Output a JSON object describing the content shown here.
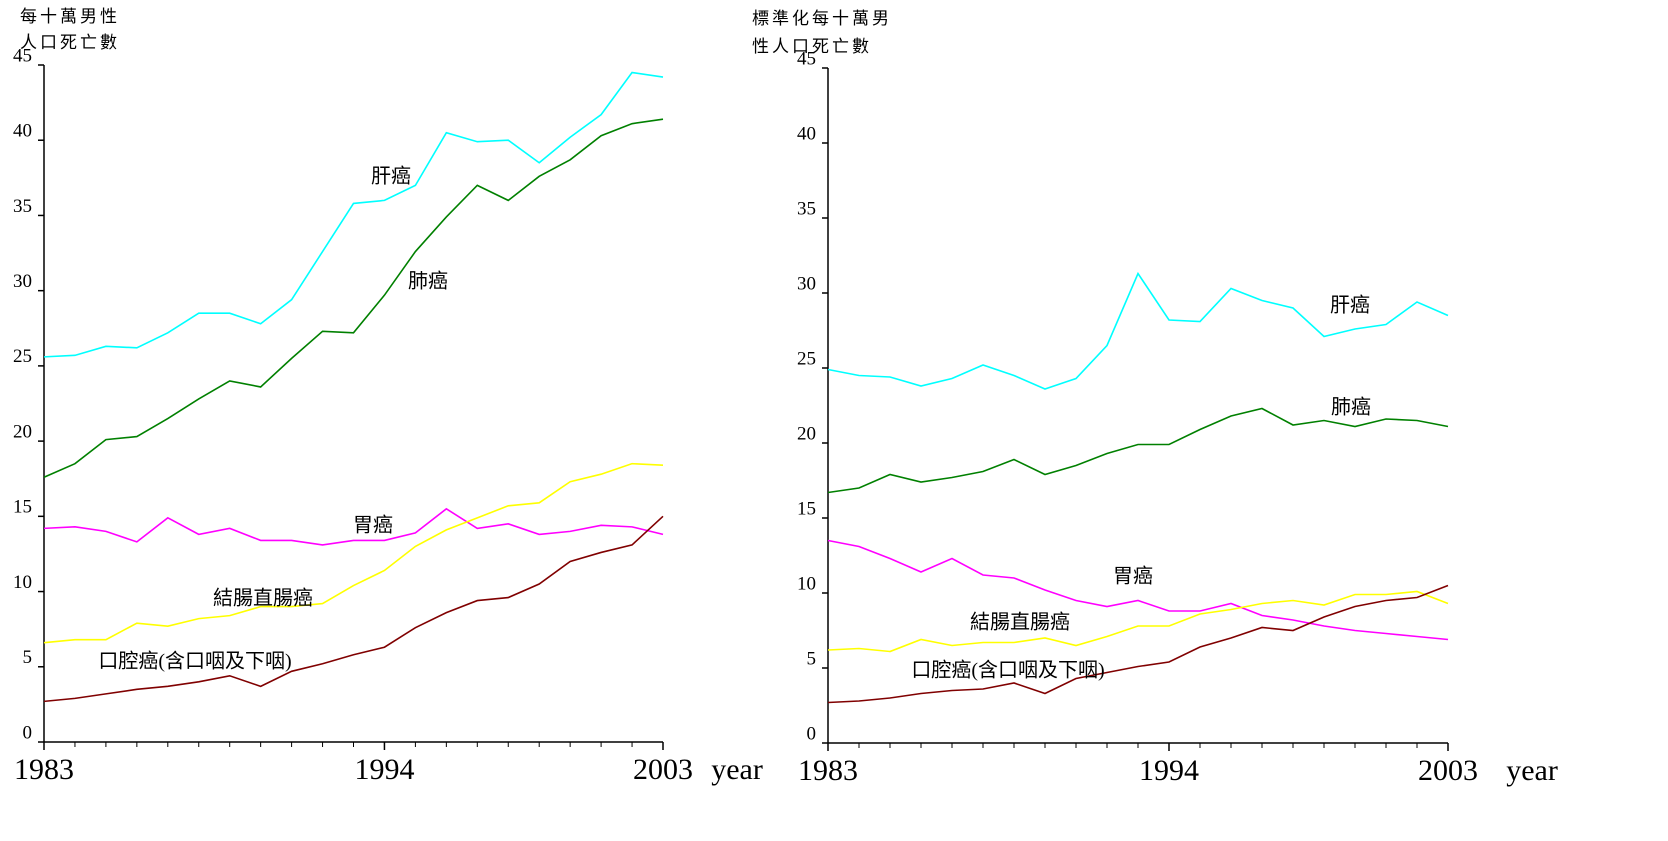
{
  "chart_data": [
    {
      "type": "line",
      "ylabel_lines": [
        "每十萬男性",
        "人口死亡數"
      ],
      "xlabel": "year",
      "x": [
        1983,
        1984,
        1985,
        1986,
        1987,
        1988,
        1989,
        1990,
        1991,
        1992,
        1993,
        1994,
        1995,
        1996,
        1997,
        1998,
        1999,
        2000,
        2001,
        2002,
        2003
      ],
      "xlim": [
        1983,
        2003
      ],
      "xticks": [
        1983,
        1994,
        2003
      ],
      "ylim": [
        0,
        45
      ],
      "yticks": [
        0,
        5,
        10,
        15,
        20,
        25,
        30,
        35,
        40,
        45
      ],
      "series": [
        {
          "name": "肝癌",
          "color": "#00ffff",
          "values": [
            25.6,
            25.7,
            26.3,
            26.2,
            27.2,
            28.5,
            28.5,
            27.8,
            29.4,
            32.6,
            35.8,
            36.0,
            37.0,
            40.5,
            39.9,
            40.0,
            38.5,
            40.2,
            41.7,
            44.5,
            44.2
          ]
        },
        {
          "name": "肺癌",
          "color": "#008000",
          "values": [
            17.6,
            18.5,
            20.1,
            20.3,
            21.5,
            22.8,
            24.0,
            23.6,
            25.5,
            27.3,
            27.2,
            29.7,
            32.6,
            34.9,
            37.0,
            36.0,
            37.6,
            38.7,
            40.3,
            41.1,
            41.4
          ]
        },
        {
          "name": "胃癌",
          "color": "#ff00ff",
          "values": [
            14.2,
            14.3,
            14.0,
            13.3,
            14.9,
            13.8,
            14.2,
            13.4,
            13.4,
            13.1,
            13.4,
            13.4,
            13.9,
            15.5,
            14.2,
            14.5,
            13.8,
            14.0,
            14.4,
            14.3,
            13.8
          ]
        },
        {
          "name": "結腸直腸癌",
          "color": "#ffff00",
          "values": [
            6.6,
            6.8,
            6.8,
            7.9,
            7.7,
            8.2,
            8.4,
            9.0,
            9.0,
            9.2,
            10.4,
            11.4,
            13.0,
            14.1,
            14.9,
            15.7,
            15.9,
            17.3,
            17.8,
            18.5,
            18.4
          ]
        },
        {
          "name": "口腔癌(含口咽及下咽)",
          "color": "#800000",
          "values": [
            2.7,
            2.9,
            3.2,
            3.5,
            3.7,
            4.0,
            4.4,
            3.7,
            4.7,
            5.2,
            5.8,
            6.3,
            7.6,
            8.6,
            9.4,
            9.6,
            10.5,
            12.0,
            12.6,
            13.1,
            15.0
          ]
        }
      ]
    },
    {
      "type": "line",
      "ylabel_lines": [
        "標準化每十萬男",
        "性人口死亡數"
      ],
      "xlabel": "year",
      "x": [
        1983,
        1984,
        1985,
        1986,
        1987,
        1988,
        1989,
        1990,
        1991,
        1992,
        1993,
        1994,
        1995,
        1996,
        1997,
        1998,
        1999,
        2000,
        2001,
        2002,
        2003
      ],
      "xlim": [
        1983,
        2003
      ],
      "xticks": [
        1983,
        1994,
        2003
      ],
      "ylim": [
        0,
        45
      ],
      "yticks": [
        0,
        5,
        10,
        15,
        20,
        25,
        30,
        35,
        40,
        45
      ],
      "series": [
        {
          "name": "肝癌",
          "color": "#00ffff",
          "values": [
            24.9,
            24.5,
            24.4,
            23.8,
            24.3,
            25.2,
            24.5,
            23.6,
            24.3,
            26.5,
            31.3,
            28.2,
            28.1,
            30.3,
            29.5,
            29.0,
            27.1,
            27.6,
            27.9,
            29.4,
            28.5
          ]
        },
        {
          "name": "肺癌",
          "color": "#008000",
          "values": [
            16.7,
            17.0,
            17.9,
            17.4,
            17.7,
            18.1,
            18.9,
            17.9,
            18.5,
            19.3,
            19.9,
            19.9,
            20.9,
            21.8,
            22.3,
            21.2,
            21.5,
            21.1,
            21.6,
            21.5,
            21.1
          ]
        },
        {
          "name": "胃癌",
          "color": "#ff00ff",
          "values": [
            13.5,
            13.1,
            12.3,
            11.4,
            12.3,
            11.2,
            11.0,
            10.2,
            9.5,
            9.1,
            9.5,
            8.8,
            8.8,
            9.3,
            8.5,
            8.2,
            7.8,
            7.5,
            7.3,
            7.1,
            6.9
          ]
        },
        {
          "name": "結腸直腸癌",
          "color": "#ffff00",
          "values": [
            6.2,
            6.3,
            6.1,
            6.9,
            6.5,
            6.7,
            6.7,
            7.0,
            6.5,
            7.1,
            7.8,
            7.8,
            8.6,
            8.9,
            9.3,
            9.5,
            9.2,
            9.9,
            9.9,
            10.1,
            9.3
          ]
        },
        {
          "name": "口腔癌(含口咽及下咽)",
          "color": "#800000",
          "values": [
            2.7,
            2.8,
            3.0,
            3.3,
            3.5,
            3.6,
            4.0,
            3.3,
            4.3,
            4.7,
            5.1,
            5.4,
            6.4,
            7.0,
            7.7,
            7.5,
            8.4,
            9.1,
            9.5,
            9.7,
            10.5
          ]
        }
      ]
    }
  ]
}
